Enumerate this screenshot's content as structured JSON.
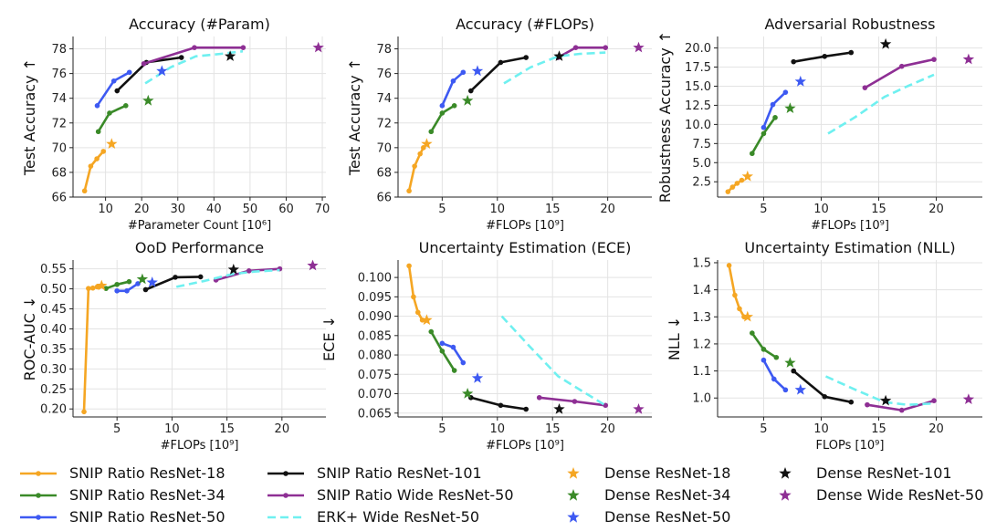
{
  "colors": {
    "snip18": "#f5a623",
    "snip34": "#3a8a28",
    "snip50": "#3d59f2",
    "snip101": "#111111",
    "wide": "#8e2f94",
    "erk": "#6ff0f0",
    "grid": "#e3e3e3"
  },
  "legend": [
    {
      "key": "snip18",
      "label": "SNIP Ratio ResNet-18",
      "kind": "line"
    },
    {
      "key": "snip34",
      "label": "SNIP Ratio ResNet-34",
      "kind": "line"
    },
    {
      "key": "snip50",
      "label": "SNIP Ratio ResNet-50",
      "kind": "line"
    },
    {
      "key": "snip101",
      "label": "SNIP Ratio ResNet-101",
      "kind": "line"
    },
    {
      "key": "wide",
      "label": "SNIP Ratio Wide ResNet-50",
      "kind": "line"
    },
    {
      "key": "erk",
      "label": "ERK+ Wide ResNet-50",
      "kind": "dash"
    },
    {
      "key": "snip18",
      "label": "Dense ResNet-18",
      "kind": "star"
    },
    {
      "key": "snip34",
      "label": "Dense ResNet-34",
      "kind": "star"
    },
    {
      "key": "snip50",
      "label": "Dense ResNet-50",
      "kind": "star"
    },
    {
      "key": "snip101",
      "label": "Dense ResNet-101",
      "kind": "star"
    },
    {
      "key": "wide",
      "label": "Dense Wide ResNet-50",
      "kind": "star"
    }
  ],
  "chart_data": [
    {
      "type": "line",
      "title": "Accuracy (#Param)",
      "xlabel": "#Parameter Count [10⁶]",
      "ylabel": "Test Accuracy ↑",
      "xlim": [
        1,
        71
      ],
      "ylim": [
        66,
        79
      ],
      "grid": true,
      "xticks": [
        10,
        20,
        30,
        40,
        50,
        60,
        70
      ],
      "xtick_labels": [
        "10",
        "20",
        "30",
        "40",
        "50",
        "60",
        "70"
      ],
      "yticks": [
        66,
        68,
        70,
        72,
        74,
        76,
        78
      ],
      "ytick_labels": [
        "66",
        "68",
        "70",
        "72",
        "74",
        "76",
        "78"
      ],
      "series": [
        {
          "key": "snip18",
          "kind": "line",
          "x": [
            4.2,
            5.9,
            7.6,
            9.4
          ],
          "y": [
            66.5,
            68.5,
            69.1,
            69.7
          ]
        },
        {
          "key": "snip34",
          "kind": "line",
          "x": [
            8.0,
            11.1,
            15.6
          ],
          "y": [
            71.3,
            72.8,
            73.4
          ]
        },
        {
          "key": "snip50",
          "kind": "line",
          "x": [
            7.7,
            12.3,
            16.6
          ],
          "y": [
            73.4,
            75.4,
            76.1
          ]
        },
        {
          "key": "snip101",
          "kind": "line",
          "x": [
            13.2,
            21.3,
            31.0
          ],
          "y": [
            74.6,
            76.9,
            77.3
          ]
        },
        {
          "key": "wide",
          "kind": "line",
          "x": [
            20.6,
            34.6,
            48.1
          ],
          "y": [
            76.8,
            78.1,
            78.1
          ]
        },
        {
          "key": "erk",
          "kind": "dash",
          "x": [
            21.0,
            28.0,
            35.0,
            42.0,
            48.0
          ],
          "y": [
            75.2,
            76.5,
            77.4,
            77.6,
            77.8
          ]
        },
        {
          "key": "snip18",
          "kind": "star",
          "x": [
            11.7
          ],
          "y": [
            70.3
          ]
        },
        {
          "key": "snip34",
          "kind": "star",
          "x": [
            21.8
          ],
          "y": [
            73.8
          ]
        },
        {
          "key": "snip50",
          "kind": "star",
          "x": [
            25.6
          ],
          "y": [
            76.2
          ]
        },
        {
          "key": "snip101",
          "kind": "star",
          "x": [
            44.5
          ],
          "y": [
            77.4
          ]
        },
        {
          "key": "wide",
          "kind": "star",
          "x": [
            68.9
          ],
          "y": [
            78.1
          ]
        }
      ]
    },
    {
      "type": "line",
      "title": "Accuracy (#FLOPs)",
      "xlabel": "#FLOPs [10⁹]",
      "ylabel": "Test Accuracy ↑",
      "xlim": [
        1,
        24
      ],
      "ylim": [
        66,
        79
      ],
      "grid": true,
      "xticks": [
        5,
        10,
        15,
        20
      ],
      "xtick_labels": [
        "5",
        "10",
        "15",
        "20"
      ],
      "yticks": [
        66,
        68,
        70,
        72,
        74,
        76,
        78
      ],
      "ytick_labels": [
        "66",
        "68",
        "70",
        "72",
        "74",
        "76",
        "78"
      ],
      "series": [
        {
          "key": "snip18",
          "kind": "line",
          "x": [
            2.0,
            2.5,
            3.0,
            3.3
          ],
          "y": [
            66.5,
            68.5,
            69.5,
            70.0
          ]
        },
        {
          "key": "snip34",
          "kind": "line",
          "x": [
            4.0,
            5.0,
            6.1
          ],
          "y": [
            71.3,
            72.8,
            73.4
          ]
        },
        {
          "key": "snip50",
          "kind": "line",
          "x": [
            5.0,
            6.0,
            6.9
          ],
          "y": [
            73.4,
            75.4,
            76.1
          ]
        },
        {
          "key": "snip101",
          "kind": "line",
          "x": [
            7.6,
            10.3,
            12.6
          ],
          "y": [
            74.6,
            76.9,
            77.3
          ]
        },
        {
          "key": "wide",
          "kind": "line",
          "x": [
            15.5,
            17.1,
            19.8
          ],
          "y": [
            77.3,
            78.1,
            78.1
          ]
        },
        {
          "key": "erk",
          "kind": "dash",
          "x": [
            10.6,
            13.0,
            15.5,
            17.5,
            19.8
          ],
          "y": [
            75.2,
            76.5,
            77.4,
            77.6,
            77.7
          ]
        },
        {
          "key": "snip18",
          "kind": "star",
          "x": [
            3.6
          ],
          "y": [
            70.3
          ]
        },
        {
          "key": "snip34",
          "kind": "star",
          "x": [
            7.3
          ],
          "y": [
            73.8
          ]
        },
        {
          "key": "snip50",
          "kind": "star",
          "x": [
            8.2
          ],
          "y": [
            76.2
          ]
        },
        {
          "key": "snip101",
          "kind": "star",
          "x": [
            15.6
          ],
          "y": [
            77.4
          ]
        },
        {
          "key": "wide",
          "kind": "star",
          "x": [
            22.8
          ],
          "y": [
            78.1
          ]
        }
      ]
    },
    {
      "type": "line",
      "title": "Adversarial Robustness",
      "xlabel": "#FLOPs [10⁹]",
      "ylabel": "Robustness Accuracy ↑",
      "xlim": [
        1,
        24
      ],
      "ylim": [
        0.5,
        21.5
      ],
      "grid": true,
      "xticks": [
        5,
        10,
        15,
        20
      ],
      "xtick_labels": [
        "5",
        "10",
        "15",
        "20"
      ],
      "yticks": [
        2.5,
        5,
        7.5,
        10,
        12.5,
        15,
        17.5,
        20
      ],
      "ytick_labels": [
        "2.5",
        "5.0",
        "7.5",
        "10.0",
        "12.5",
        "15.0",
        "17.5",
        "20.0"
      ],
      "series": [
        {
          "key": "snip18",
          "kind": "line",
          "x": [
            1.9,
            2.3,
            2.7,
            3.1
          ],
          "y": [
            1.2,
            1.8,
            2.3,
            2.7
          ]
        },
        {
          "key": "snip34",
          "kind": "line",
          "x": [
            4.0,
            5.0,
            6.0
          ],
          "y": [
            6.2,
            8.8,
            10.9
          ]
        },
        {
          "key": "snip50",
          "kind": "line",
          "x": [
            5.0,
            5.8,
            6.9
          ],
          "y": [
            9.6,
            12.6,
            14.2
          ]
        },
        {
          "key": "snip101",
          "kind": "line",
          "x": [
            7.6,
            10.3,
            12.6
          ],
          "y": [
            18.2,
            18.9,
            19.4
          ]
        },
        {
          "key": "wide",
          "kind": "line",
          "x": [
            13.8,
            17.0,
            19.8
          ],
          "y": [
            14.8,
            17.6,
            18.5
          ]
        },
        {
          "key": "erk",
          "kind": "dash",
          "x": [
            10.6,
            13.0,
            15.5,
            17.5,
            19.8
          ],
          "y": [
            8.8,
            11.0,
            13.6,
            15.0,
            16.5
          ]
        },
        {
          "key": "snip18",
          "kind": "star",
          "x": [
            3.6
          ],
          "y": [
            3.2
          ]
        },
        {
          "key": "snip34",
          "kind": "star",
          "x": [
            7.3
          ],
          "y": [
            12.1
          ]
        },
        {
          "key": "snip50",
          "kind": "star",
          "x": [
            8.2
          ],
          "y": [
            15.6
          ]
        },
        {
          "key": "snip101",
          "kind": "star",
          "x": [
            15.6
          ],
          "y": [
            20.5
          ]
        },
        {
          "key": "wide",
          "kind": "star",
          "x": [
            22.8
          ],
          "y": [
            18.5
          ]
        }
      ]
    },
    {
      "type": "line",
      "title": "OoD Performance",
      "xlabel": "#FLOPs [10⁹]",
      "ylabel": "ROC-AUC ↓",
      "xlim": [
        1,
        24
      ],
      "ylim": [
        0.18,
        0.572
      ],
      "grid": true,
      "xticks": [
        5,
        10,
        15,
        20
      ],
      "xtick_labels": [
        "5",
        "10",
        "15",
        "20"
      ],
      "yticks": [
        0.2,
        0.25,
        0.3,
        0.35,
        0.4,
        0.45,
        0.5,
        0.55
      ],
      "ytick_labels": [
        "0.20",
        "0.25",
        "0.30",
        "0.35",
        "0.40",
        "0.45",
        "0.50",
        "0.55"
      ],
      "series": [
        {
          "key": "snip18",
          "kind": "line",
          "x": [
            2.0,
            2.4,
            2.8,
            3.2
          ],
          "y": [
            0.193,
            0.501,
            0.502,
            0.505
          ]
        },
        {
          "key": "snip34",
          "kind": "line",
          "x": [
            4.0,
            5.0,
            6.1
          ],
          "y": [
            0.501,
            0.511,
            0.518
          ]
        },
        {
          "key": "snip50",
          "kind": "line",
          "x": [
            5.0,
            5.9,
            6.9
          ],
          "y": [
            0.495,
            0.495,
            0.513
          ]
        },
        {
          "key": "snip101",
          "kind": "line",
          "x": [
            7.6,
            10.3,
            12.6
          ],
          "y": [
            0.498,
            0.529,
            0.53
          ]
        },
        {
          "key": "wide",
          "kind": "line",
          "x": [
            14.0,
            17.0,
            19.8
          ],
          "y": [
            0.522,
            0.545,
            0.55
          ]
        },
        {
          "key": "erk",
          "kind": "dash",
          "x": [
            10.4,
            13.0,
            15.5,
            17.5,
            19.8
          ],
          "y": [
            0.505,
            0.52,
            0.537,
            0.543,
            0.547
          ]
        },
        {
          "key": "snip18",
          "kind": "star",
          "x": [
            3.6
          ],
          "y": [
            0.508
          ]
        },
        {
          "key": "snip34",
          "kind": "star",
          "x": [
            7.3
          ],
          "y": [
            0.524
          ]
        },
        {
          "key": "snip50",
          "kind": "star",
          "x": [
            8.2
          ],
          "y": [
            0.516
          ]
        },
        {
          "key": "snip101",
          "kind": "star",
          "x": [
            15.6
          ],
          "y": [
            0.548
          ]
        },
        {
          "key": "wide",
          "kind": "star",
          "x": [
            22.8
          ],
          "y": [
            0.558
          ]
        }
      ]
    },
    {
      "type": "line",
      "title": "Uncertainty Estimation (ECE)",
      "xlabel": "#FLOPs [10⁹]",
      "ylabel": "ECE ↓",
      "xlim": [
        1,
        24
      ],
      "ylim": [
        0.064,
        0.1045
      ],
      "grid": true,
      "xticks": [
        5,
        10,
        15,
        20
      ],
      "xtick_labels": [
        "5",
        "10",
        "15",
        "20"
      ],
      "yticks": [
        0.065,
        0.07,
        0.075,
        0.08,
        0.085,
        0.09,
        0.095,
        0.1
      ],
      "ytick_labels": [
        "0.065",
        "0.070",
        "0.075",
        "0.080",
        "0.085",
        "0.090",
        "0.095",
        "0.100"
      ],
      "series": [
        {
          "key": "snip18",
          "kind": "line",
          "x": [
            2.0,
            2.4,
            2.8,
            3.2
          ],
          "y": [
            0.103,
            0.095,
            0.091,
            0.089
          ]
        },
        {
          "key": "snip34",
          "kind": "line",
          "x": [
            4.0,
            5.0,
            6.1
          ],
          "y": [
            0.086,
            0.081,
            0.076
          ]
        },
        {
          "key": "snip50",
          "kind": "line",
          "x": [
            5.0,
            6.0,
            6.9
          ],
          "y": [
            0.083,
            0.082,
            0.078
          ]
        },
        {
          "key": "snip101",
          "kind": "line",
          "x": [
            7.6,
            10.3,
            12.6
          ],
          "y": [
            0.069,
            0.067,
            0.066
          ]
        },
        {
          "key": "wide",
          "kind": "line",
          "x": [
            13.8,
            17.0,
            19.8
          ],
          "y": [
            0.069,
            0.068,
            0.067
          ]
        },
        {
          "key": "erk",
          "kind": "dash",
          "x": [
            10.4,
            13.0,
            15.5,
            17.5,
            19.8
          ],
          "y": [
            0.09,
            0.082,
            0.0745,
            0.071,
            0.067
          ]
        },
        {
          "key": "snip18",
          "kind": "star",
          "x": [
            3.6
          ],
          "y": [
            0.089
          ]
        },
        {
          "key": "snip34",
          "kind": "star",
          "x": [
            7.3
          ],
          "y": [
            0.07
          ]
        },
        {
          "key": "snip50",
          "kind": "star",
          "x": [
            8.2
          ],
          "y": [
            0.074
          ]
        },
        {
          "key": "snip101",
          "kind": "star",
          "x": [
            15.6
          ],
          "y": [
            0.066
          ]
        },
        {
          "key": "wide",
          "kind": "star",
          "x": [
            22.8
          ],
          "y": [
            0.066
          ]
        }
      ]
    },
    {
      "type": "line",
      "title": "Uncertainty Estimation (NLL)",
      "xlabel": "FLOPs [10⁹]",
      "ylabel": "NLL ↓",
      "xlim": [
        1,
        24
      ],
      "ylim": [
        0.93,
        1.51
      ],
      "grid": true,
      "xticks": [
        5,
        10,
        15,
        20
      ],
      "xtick_labels": [
        "5",
        "10",
        "15",
        "20"
      ],
      "yticks": [
        1.0,
        1.1,
        1.2,
        1.3,
        1.4,
        1.5
      ],
      "ytick_labels": [
        "1.0",
        "1.1",
        "1.2",
        "1.3",
        "1.4",
        "1.5"
      ],
      "series": [
        {
          "key": "snip18",
          "kind": "line",
          "x": [
            2.0,
            2.5,
            2.9,
            3.3
          ],
          "y": [
            1.49,
            1.38,
            1.33,
            1.3
          ]
        },
        {
          "key": "snip34",
          "kind": "line",
          "x": [
            4.0,
            5.0,
            6.1
          ],
          "y": [
            1.24,
            1.18,
            1.15
          ]
        },
        {
          "key": "snip50",
          "kind": "line",
          "x": [
            5.0,
            5.9,
            6.9
          ],
          "y": [
            1.14,
            1.07,
            1.03
          ]
        },
        {
          "key": "snip101",
          "kind": "line",
          "x": [
            7.6,
            10.3,
            12.6
          ],
          "y": [
            1.1,
            1.005,
            0.985
          ]
        },
        {
          "key": "wide",
          "kind": "line",
          "x": [
            14.0,
            17.0,
            19.8
          ],
          "y": [
            0.975,
            0.955,
            0.99
          ]
        },
        {
          "key": "erk",
          "kind": "dash",
          "x": [
            10.4,
            13.0,
            15.5,
            17.5,
            19.8
          ],
          "y": [
            1.08,
            1.03,
            0.985,
            0.975,
            0.98
          ]
        },
        {
          "key": "snip18",
          "kind": "star",
          "x": [
            3.6
          ],
          "y": [
            1.3
          ]
        },
        {
          "key": "snip34",
          "kind": "star",
          "x": [
            7.3
          ],
          "y": [
            1.13
          ]
        },
        {
          "key": "snip50",
          "kind": "star",
          "x": [
            8.2
          ],
          "y": [
            1.03
          ]
        },
        {
          "key": "snip101",
          "kind": "star",
          "x": [
            15.6
          ],
          "y": [
            0.99
          ]
        },
        {
          "key": "wide",
          "kind": "star",
          "x": [
            22.8
          ],
          "y": [
            0.995
          ]
        }
      ]
    }
  ]
}
